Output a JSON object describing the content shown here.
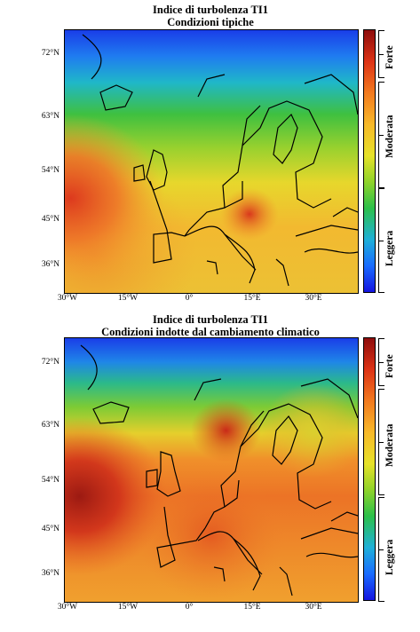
{
  "colors": {
    "low": "#1515e0",
    "mid": "#e6e22a",
    "high": "#8e0d0d",
    "coastline": "#000000"
  },
  "panels": [
    {
      "title_line1": "Indice di turbolenza TI1",
      "title_line2": "Condizioni tipiche",
      "y_ticks": [
        "72°N",
        "63°N",
        "54°N",
        "45°N",
        "36°N"
      ],
      "x_ticks": [
        "30°W",
        "15°W",
        "0°",
        "15°E",
        "30°E"
      ],
      "colorbar_categories": [
        "Forte",
        "Moderata",
        "Leggera"
      ]
    },
    {
      "title_line1": "Indice di turbolenza TI1",
      "title_line2": "Condizioni indotte dal cambiamento climatico",
      "y_ticks": [
        "72°N",
        "63°N",
        "54°N",
        "45°N",
        "36°N"
      ],
      "x_ticks": [
        "30°W",
        "15°W",
        "0°",
        "15°E",
        "30°E"
      ],
      "colorbar_categories": [
        "Forte",
        "Moderata",
        "Leggera"
      ]
    }
  ]
}
